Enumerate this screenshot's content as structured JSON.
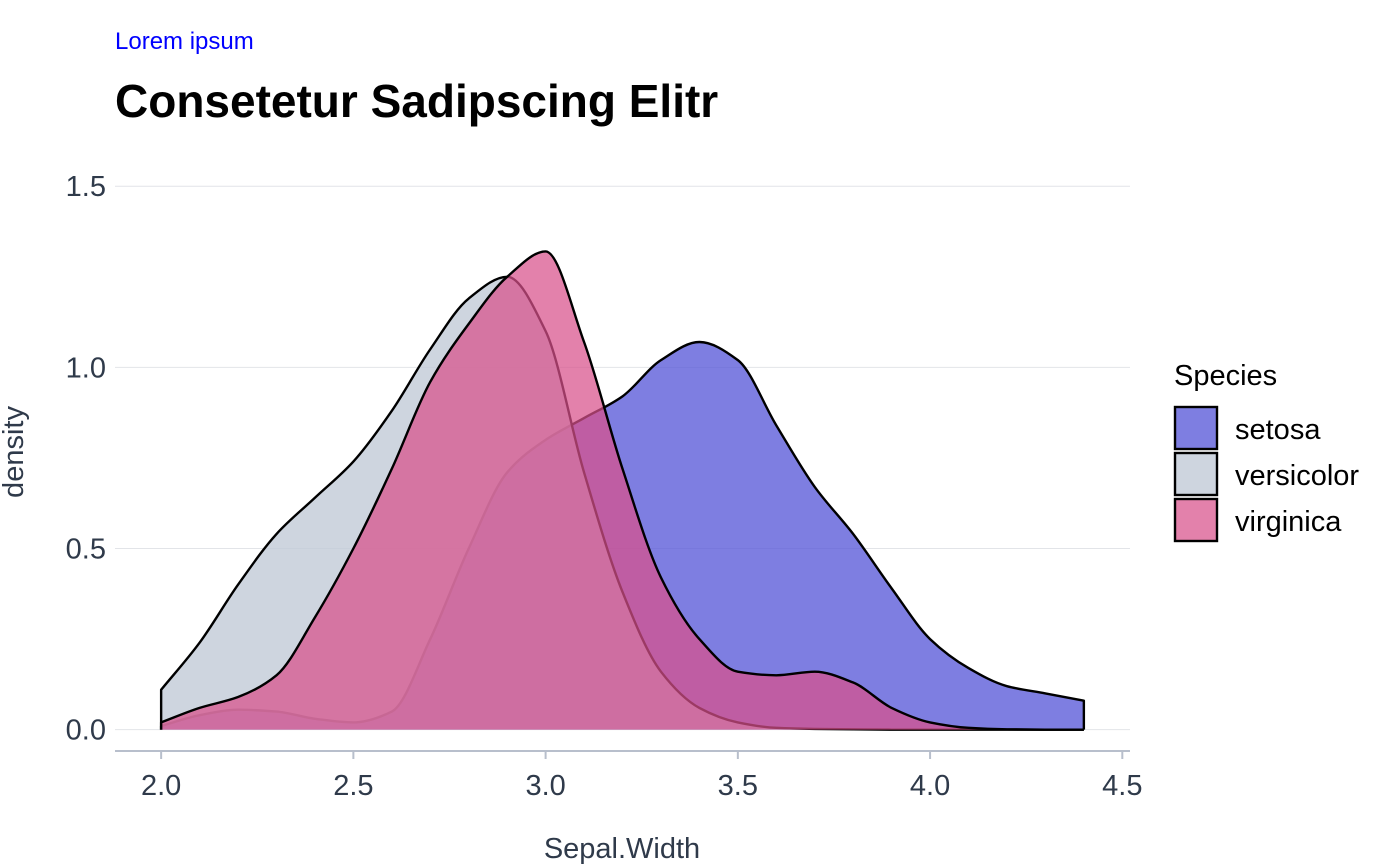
{
  "chart_data": {
    "type": "area",
    "subtitle": "Lorem ipsum",
    "title": "Consetetur Sadipscing Elitr",
    "xlabel": "Sepal.Width",
    "ylabel": "density",
    "xlim": [
      1.88,
      4.52
    ],
    "ylim": [
      -0.07,
      1.6
    ],
    "x_ticks": [
      2.0,
      2.5,
      3.0,
      3.5,
      4.0,
      4.5
    ],
    "x_tick_labels": [
      "2.0",
      "2.5",
      "3.0",
      "3.5",
      "4.0",
      "4.5"
    ],
    "y_ticks": [
      0.0,
      0.5,
      1.0,
      1.5
    ],
    "y_tick_labels": [
      "0.0",
      "0.5",
      "1.0",
      "1.5"
    ],
    "grid": "horizontal",
    "legend": {
      "title": "Species",
      "placement": "right"
    },
    "colors": {
      "subtitle": "#0000ff",
      "grid": "#e2e4e8",
      "axis": "#b8bfcc",
      "outline": "#000000"
    },
    "series": [
      {
        "name": "setosa",
        "fill": "#5a5ad8",
        "opacity": 0.78,
        "x": [
          2.0,
          2.1,
          2.2,
          2.3,
          2.4,
          2.5,
          2.6,
          2.7,
          2.8,
          2.9,
          3.0,
          3.1,
          3.2,
          3.3,
          3.4,
          3.5,
          3.6,
          3.7,
          3.8,
          3.9,
          4.0,
          4.1,
          4.2,
          4.3,
          4.4
        ],
        "y": [
          0.01,
          0.04,
          0.055,
          0.05,
          0.03,
          0.02,
          0.05,
          0.25,
          0.5,
          0.71,
          0.8,
          0.86,
          0.92,
          1.02,
          1.07,
          1.02,
          0.84,
          0.67,
          0.54,
          0.39,
          0.25,
          0.17,
          0.12,
          0.1,
          0.08
        ]
      },
      {
        "name": "versicolor",
        "fill": "#c2cad7",
        "opacity": 0.8,
        "x": [
          2.0,
          2.1,
          2.2,
          2.3,
          2.4,
          2.5,
          2.6,
          2.7,
          2.8,
          2.9,
          3.0,
          3.1,
          3.2,
          3.3,
          3.4,
          3.5,
          3.6,
          3.7,
          3.8,
          3.9,
          4.0,
          4.1,
          4.2,
          4.3,
          4.4
        ],
        "y": [
          0.11,
          0.24,
          0.4,
          0.54,
          0.64,
          0.74,
          0.88,
          1.05,
          1.19,
          1.25,
          1.1,
          0.71,
          0.38,
          0.16,
          0.06,
          0.02,
          0.005,
          0.002,
          0.001,
          0.0,
          0.0,
          0.0,
          0.0,
          0.0,
          0.0
        ]
      },
      {
        "name": "virginica",
        "fill": "#d8508a",
        "opacity": 0.72,
        "x": [
          2.0,
          2.1,
          2.2,
          2.3,
          2.4,
          2.5,
          2.6,
          2.7,
          2.8,
          2.9,
          3.0,
          3.1,
          3.2,
          3.3,
          3.4,
          3.5,
          3.6,
          3.7,
          3.8,
          3.9,
          4.0,
          4.1,
          4.2,
          4.3,
          4.4
        ],
        "y": [
          0.02,
          0.06,
          0.09,
          0.15,
          0.31,
          0.5,
          0.72,
          0.96,
          1.12,
          1.25,
          1.32,
          1.07,
          0.72,
          0.42,
          0.25,
          0.16,
          0.15,
          0.16,
          0.13,
          0.06,
          0.02,
          0.005,
          0.001,
          0.0,
          0.0
        ]
      }
    ]
  }
}
